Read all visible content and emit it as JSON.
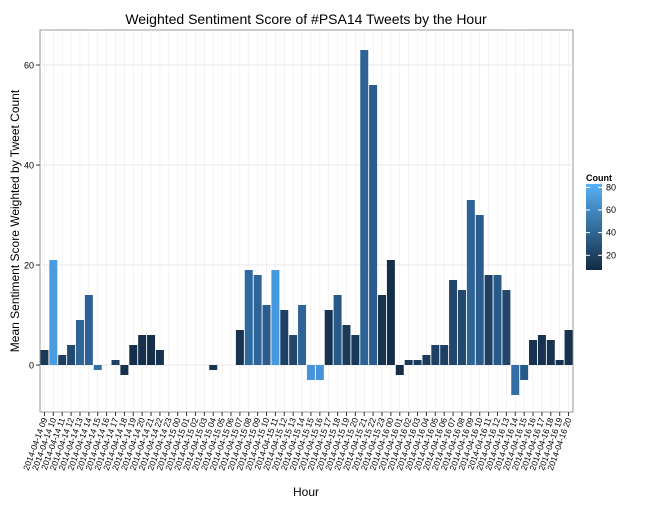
{
  "chart_data": {
    "type": "bar",
    "title": "Weighted Sentiment Score of #PSA14 Tweets by the Hour",
    "x_label": "Hour",
    "y_label": "Mean Sentiment Score Weighted by Tweet Count",
    "categories": [
      "2014-04-14 09",
      "2014-04-14 10",
      "2014-04-14 11",
      "2014-04-14 12",
      "2014-04-14 13",
      "2014-04-14 14",
      "2014-04-14 15",
      "2014-04-14 16",
      "2014-04-14 17",
      "2014-04-14 18",
      "2014-04-14 19",
      "2014-04-14 20",
      "2014-04-14 21",
      "2014-04-14 22",
      "2014-04-14 23",
      "2014-04-15 00",
      "2014-04-15 01",
      "2014-04-15 02",
      "2014-04-15 03",
      "2014-04-15 04",
      "2014-04-15 05",
      "2014-04-15 06",
      "2014-04-15 07",
      "2014-04-15 08",
      "2014-04-15 09",
      "2014-04-15 10",
      "2014-04-15 11",
      "2014-04-15 12",
      "2014-04-15 13",
      "2014-04-15 14",
      "2014-04-15 15",
      "2014-04-15 16",
      "2014-04-15 17",
      "2014-04-15 18",
      "2014-04-15 19",
      "2014-04-15 20",
      "2014-04-15 21",
      "2014-04-15 22",
      "2014-04-15 23",
      "2014-04-16 00",
      "2014-04-16 01",
      "2014-04-16 02",
      "2014-04-16 03",
      "2014-04-16 04",
      "2014-04-16 05",
      "2014-04-16 06",
      "2014-04-16 07",
      "2014-04-16 08",
      "2014-04-16 09",
      "2014-04-16 10",
      "2014-04-16 11",
      "2014-04-16 12",
      "2014-04-16 13",
      "2014-04-16 14",
      "2014-04-16 15",
      "2014-04-16 16",
      "2014-04-16 17",
      "2014-04-16 18",
      "2014-04-16 19",
      "2014-04-16 20"
    ],
    "values": [
      3,
      21,
      2,
      4,
      9,
      14,
      -1,
      0,
      1,
      -2,
      4,
      6,
      6,
      3,
      0,
      0,
      0,
      0,
      0,
      -1,
      0,
      0,
      7,
      19,
      18,
      12,
      19,
      11,
      6,
      12,
      -3,
      -3,
      11,
      14,
      8,
      6,
      63,
      56,
      14,
      21,
      -2,
      1,
      1,
      2,
      4,
      4,
      17,
      15,
      33,
      30,
      18,
      18,
      15,
      -6,
      -3,
      5,
      6,
      5,
      1,
      7
    ],
    "colors": [
      "#1a3a5a",
      "#4a9ce0",
      "#1f3f60",
      "#224a70",
      "#2e6496",
      "#2d6295",
      "#336ea6",
      "#132b43",
      "#1e4264",
      "#17324e",
      "#152f4a",
      "#162f4b",
      "#162f4b",
      "#17334f",
      "#132b43",
      "#132b43",
      "#132b43",
      "#132b43",
      "#132b43",
      "#17334f",
      "#132b43",
      "#132b43",
      "#17334f",
      "#2f6a9f",
      "#2d6598",
      "#2a5d8e",
      "#4499e0",
      "#1d4165",
      "#22466c",
      "#2d6396",
      "#4894dc",
      "#4894dc",
      "#17334f",
      "#285a89",
      "#1a3a5a",
      "#1a3a5a",
      "#2d6396",
      "#2a5d8e",
      "#17334f",
      "#152f4a",
      "#152f4a",
      "#1a3a5a",
      "#1a3a5a",
      "#1a3a5a",
      "#1d4064",
      "#1d4064",
      "#22466c",
      "#22466c",
      "#2d6396",
      "#2a5d8e",
      "#1d4064",
      "#285a89",
      "#22466c",
      "#336ea6",
      "#285a89",
      "#17334f",
      "#17334f",
      "#17334f",
      "#17334f",
      "#17334f"
    ],
    "ylim": [
      -9.4,
      67
    ],
    "yticks": [
      0,
      20,
      40,
      60
    ],
    "grid": true,
    "legend": {
      "title": "Count",
      "ticks": [
        20,
        40,
        60,
        80
      ],
      "lim": [
        7,
        83
      ],
      "low_color": "#132B43",
      "high_color": "#56B1F7"
    }
  }
}
